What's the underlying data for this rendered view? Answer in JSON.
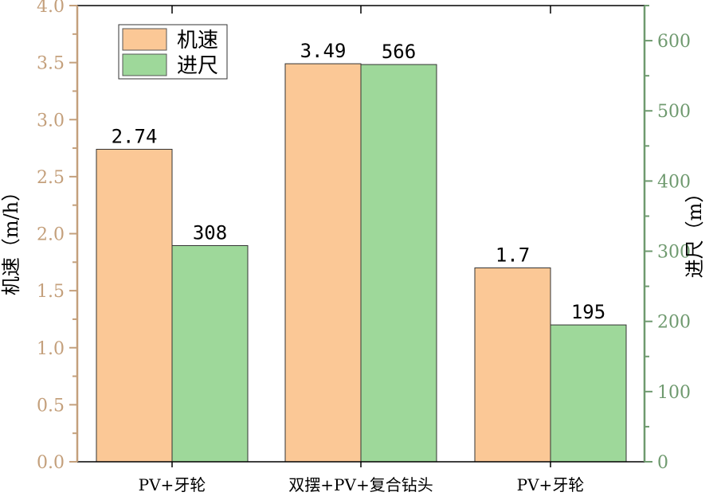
{
  "chart_data": {
    "type": "bar",
    "title": "",
    "categories": [
      "PV+牙轮",
      "双摆+PV+复合钻头",
      "PV+牙轮"
    ],
    "series": [
      {
        "name": "机速",
        "axis": "left",
        "values": [
          2.74,
          3.49,
          1.7
        ],
        "labels": [
          "2.74",
          "3.49",
          "1.7"
        ],
        "color": "#FBC896"
      },
      {
        "name": "进尺",
        "axis": "right",
        "values": [
          308,
          566,
          195
        ],
        "labels": [
          "308",
          "566",
          "195"
        ],
        "color": "#9ED89A"
      }
    ],
    "ylabel": "机速（m/h）",
    "y2label": "进尺（m）",
    "xlabel": "",
    "ylim": [
      0,
      4.0
    ],
    "y2lim": [
      0,
      650
    ],
    "yticks": [
      "0.0",
      "0.5",
      "1.0",
      "1.5",
      "2.0",
      "2.5",
      "3.0",
      "3.5",
      "4.0"
    ],
    "y2ticks": [
      "0",
      "100",
      "200",
      "300",
      "400",
      "500",
      "600"
    ],
    "left_axis_color": "#C4A07C",
    "right_axis_color": "#6F9A6F",
    "legend": "top-left",
    "grid": false
  }
}
